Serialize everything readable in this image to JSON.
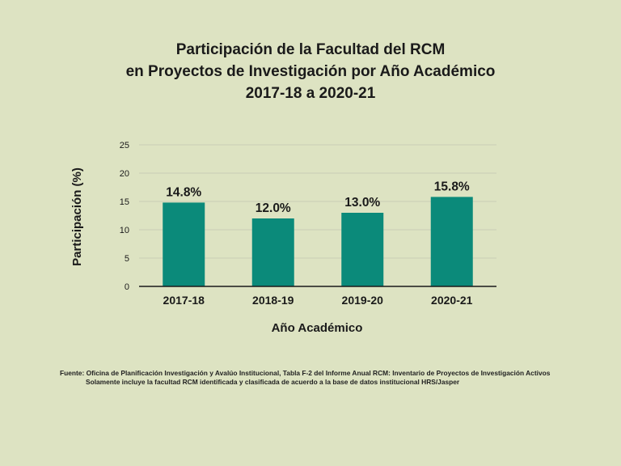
{
  "chart_data": {
    "type": "bar",
    "title": [
      "Participación de la Facultad del RCM",
      "en Proyectos de Investigación por Año Académico",
      "2017-18 a 2020-21"
    ],
    "xlabel": "Año Académico",
    "ylabel": "Participación (%)",
    "categories": [
      "2017-18",
      "2018-19",
      "2019-20",
      "2020-21"
    ],
    "values": [
      14.8,
      12.0,
      13.0,
      15.8
    ],
    "data_labels": [
      "14.8%",
      "12.0%",
      "13.0%",
      "15.8%"
    ],
    "ylim": [
      0,
      25
    ],
    "yticks": [
      0,
      5,
      10,
      15,
      20,
      25
    ],
    "grid": true,
    "bar_color": "#0b8a7a"
  },
  "source": {
    "line1": "Fuente: Oficina de Planificación Investigación y Avalúo Institucional, Tabla F-2 del Informe Anual RCM: Inventario de Proyectos de Investigación Activos",
    "line2": "Solamente incluye la facultad RCM identificada  y clasificada de acuerdo a la base de datos institucional HRS/Jasper"
  }
}
